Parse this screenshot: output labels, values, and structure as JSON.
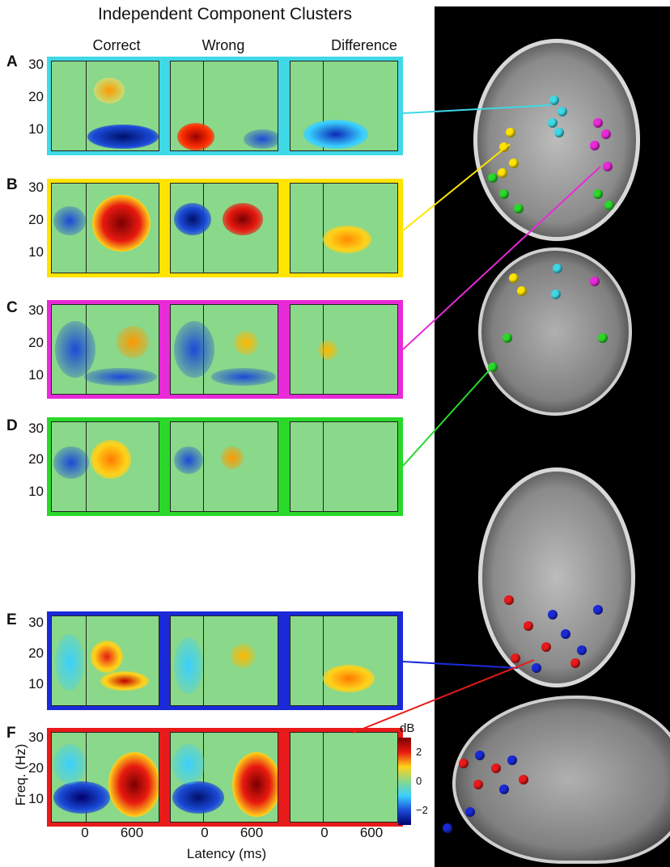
{
  "figure": {
    "title": "Independent Component Clusters",
    "columns": [
      "Correct",
      "Wrong",
      "Difference"
    ],
    "rows": [
      {
        "label": "A",
        "color": "#3fd8e6"
      },
      {
        "label": "B",
        "color": "#ffe400"
      },
      {
        "label": "C",
        "color": "#e82ad8"
      },
      {
        "label": "D",
        "color": "#2ad82a"
      },
      {
        "label": "E",
        "color": "#1a2ad8"
      },
      {
        "label": "F",
        "color": "#e81a1a"
      }
    ],
    "y_ticks": [
      "30",
      "20",
      "10"
    ],
    "x_ticks": [
      "0",
      "600"
    ],
    "xlabel": "Latency (ms)",
    "ylabel": "Freq. (Hz)",
    "colorbar": {
      "unit": "dB",
      "ticks": [
        "2",
        "0",
        "−2"
      ]
    }
  }
}
